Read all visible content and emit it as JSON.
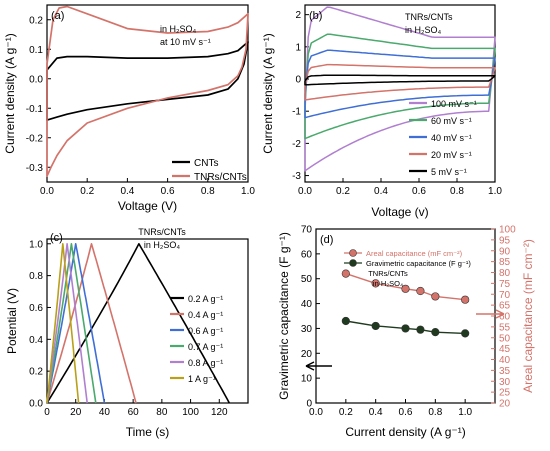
{
  "chart_data": [
    {
      "panel": "(a)",
      "type": "line",
      "annotation": [
        "in H₂SO₄",
        "at 10 mV s⁻¹"
      ],
      "xlabel": "Voltage (V)",
      "ylabel": "Current density (A g⁻¹)",
      "xlim": [
        0.0,
        1.0
      ],
      "ylim": [
        -0.35,
        0.25
      ],
      "xticks": [
        0.0,
        0.2,
        0.4,
        0.6,
        0.8,
        1.0
      ],
      "yticks": [
        0.2,
        0.1,
        0.0,
        -0.1,
        -0.2,
        -0.3
      ],
      "legend": [
        "CNTs",
        "TNRs/CNTs"
      ],
      "legend_position": "bottom-right",
      "series": [
        {
          "name": "CNTs",
          "color": "#000000",
          "upper_x": [
            0.0,
            0.05,
            0.1,
            0.2,
            0.4,
            0.6,
            0.8,
            0.9,
            0.95,
            1.0
          ],
          "upper_y": [
            0.03,
            0.07,
            0.075,
            0.075,
            0.07,
            0.07,
            0.075,
            0.085,
            0.095,
            0.125
          ],
          "lower_x": [
            1.0,
            0.98,
            0.95,
            0.9,
            0.8,
            0.6,
            0.4,
            0.2,
            0.1,
            0.05,
            0.0
          ],
          "lower_y": [
            0.125,
            0.05,
            0.0,
            -0.035,
            -0.055,
            -0.07,
            -0.085,
            -0.105,
            -0.12,
            -0.13,
            -0.14
          ]
        },
        {
          "name": "TNRs/CNTs",
          "color": "#d4736a",
          "upper_x": [
            0.0,
            0.03,
            0.06,
            0.1,
            0.2,
            0.4,
            0.6,
            0.8,
            0.9,
            0.95,
            1.0
          ],
          "upper_y": [
            0.05,
            0.2,
            0.24,
            0.245,
            0.22,
            0.17,
            0.155,
            0.16,
            0.175,
            0.19,
            0.22
          ],
          "lower_x": [
            1.0,
            0.99,
            0.97,
            0.95,
            0.9,
            0.8,
            0.6,
            0.4,
            0.2,
            0.1,
            0.05,
            0.02,
            0.0
          ],
          "lower_y": [
            0.22,
            0.1,
            0.04,
            0.01,
            -0.02,
            -0.04,
            -0.065,
            -0.1,
            -0.15,
            -0.21,
            -0.26,
            -0.3,
            -0.33
          ]
        }
      ]
    },
    {
      "panel": "(b)",
      "type": "line",
      "annotation": [
        "TNRs/CNTs",
        "in H₂SO₄"
      ],
      "xlabel": "Voltage (v)",
      "ylabel": "Current density (A g⁻¹)",
      "xlim": [
        0.0,
        1.0
      ],
      "ylim": [
        -3.2,
        2.3
      ],
      "xticks": [
        0.0,
        0.2,
        0.4,
        0.6,
        0.8,
        1.0
      ],
      "yticks": [
        2,
        1,
        0,
        -1,
        -2,
        -3
      ],
      "legend_position": "bottom-right",
      "series": [
        {
          "name": "100 mV s⁻¹",
          "color": "#b07fd0",
          "top": 2.25,
          "flat_top": 1.3,
          "bottom": -2.85,
          "flat_bot": -1.0
        },
        {
          "name": "60 mV s⁻¹",
          "color": "#4aa96c",
          "top": 1.4,
          "flat_top": 0.95,
          "bottom": -1.85,
          "flat_bot": -0.75
        },
        {
          "name": "40 mV s⁻¹",
          "color": "#3f6fd6",
          "top": 0.9,
          "flat_top": 0.65,
          "bottom": -1.2,
          "flat_bot": -0.5
        },
        {
          "name": "20 mV s⁻¹",
          "color": "#d4736a",
          "top": 0.45,
          "flat_top": 0.35,
          "bottom": -0.65,
          "flat_bot": -0.25
        },
        {
          "name": "5 mV s⁻¹",
          "color": "#000000",
          "top": 0.12,
          "flat_top": 0.1,
          "bottom": -0.18,
          "flat_bot": -0.06
        }
      ]
    },
    {
      "panel": "(c)",
      "type": "line",
      "annotation": [
        "TNRs/CNTs",
        "in H₂SO₄"
      ],
      "xlabel": "Time (s)",
      "ylabel": "Potential (V)",
      "xlim": [
        0,
        140
      ],
      "ylim": [
        0.0,
        1.03
      ],
      "xticks": [
        0,
        20,
        40,
        60,
        80,
        100,
        120
      ],
      "yticks": [
        1.0,
        0.8,
        0.6,
        0.4,
        0.2,
        0.0
      ],
      "legend_position": "right",
      "series": [
        {
          "name": "0.2 A g⁻¹",
          "color": "#000000",
          "peak_t": 64,
          "end_t": 127
        },
        {
          "name": "0.4 A g⁻¹",
          "color": "#d4736a",
          "peak_t": 31,
          "end_t": 62
        },
        {
          "name": "0.6 A g⁻¹",
          "color": "#3f6fd6",
          "peak_t": 20,
          "end_t": 40
        },
        {
          "name": "0.7 A g⁻¹",
          "color": "#4aa96c",
          "peak_t": 17,
          "end_t": 34
        },
        {
          "name": "0.8 A g⁻¹",
          "color": "#b07fd0",
          "peak_t": 14,
          "end_t": 28
        },
        {
          "name": "1 A g⁻¹",
          "color": "#b8a018",
          "peak_t": 11,
          "end_t": 22
        }
      ]
    },
    {
      "panel": "(d)",
      "type": "line",
      "annotation": [
        "TNRs/CNTs",
        "in H₂SO₄"
      ],
      "xlabel": "Current density (A g⁻¹)",
      "ylabel": "Gravimetric capacitance (F g⁻¹)",
      "ylabel_right": "Areal capacitance (mF cm⁻²)",
      "xlim": [
        0.0,
        1.2
      ],
      "ylim": [
        0,
        70
      ],
      "ylim_right": [
        20,
        100
      ],
      "xticks": [
        0.0,
        0.2,
        0.4,
        0.6,
        0.8,
        1.0
      ],
      "yticks": [
        70,
        60,
        50,
        40,
        30,
        20,
        10,
        0
      ],
      "yticks_right": [
        100,
        95,
        90,
        85,
        80,
        75,
        70,
        65,
        60,
        55,
        50,
        45,
        40,
        35,
        30,
        25,
        20
      ],
      "legend_position": "top-left",
      "x": [
        0.2,
        0.4,
        0.6,
        0.7,
        0.8,
        1.0
      ],
      "series": [
        {
          "name": "Areal capacitance (mF cm⁻²)",
          "color": "#d4736a",
          "axis": "right",
          "values": [
            79.5,
            75,
            72.5,
            71.5,
            69,
            67.5
          ]
        },
        {
          "name": "Gravimetric capacitance (F g⁻¹)",
          "color": "#1f3a1f",
          "axis": "left",
          "values": [
            33,
            31,
            30,
            29.5,
            28.5,
            28
          ]
        }
      ]
    }
  ]
}
